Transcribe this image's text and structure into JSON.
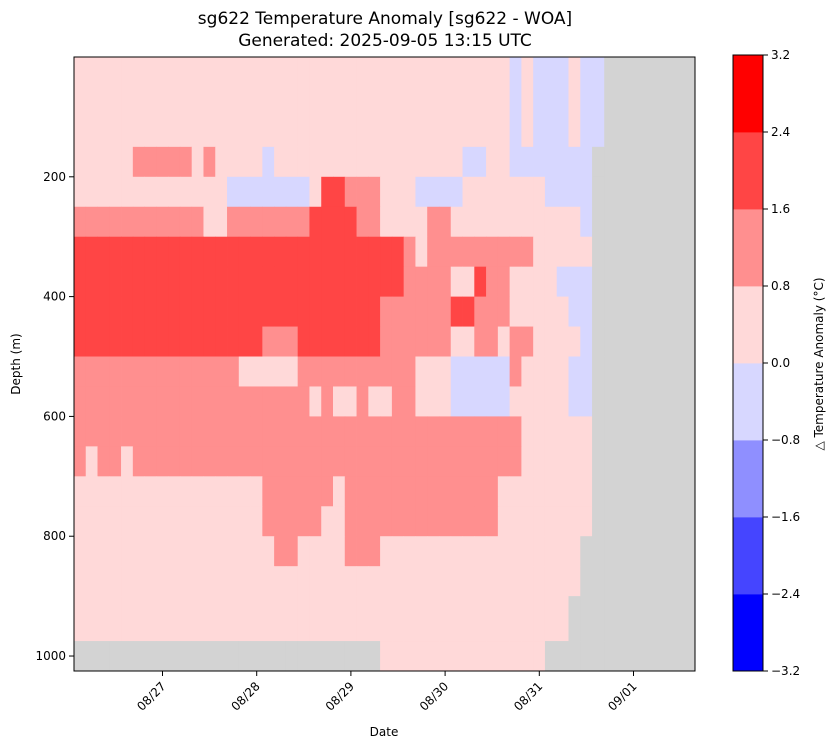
{
  "chart_data": {
    "type": "heatmap",
    "title": "sg622 Temperature Anomaly [sg622 - WOA]",
    "subtitle": "Generated: 2025-09-05 13:15 UTC",
    "xlabel": "Date",
    "ylabel": "Depth (m)",
    "x_ticks": [
      "08/27",
      "08/28",
      "08/29",
      "08/30",
      "08/31",
      "09/01"
    ],
    "y_ticks": [
      200,
      400,
      600,
      800,
      1000
    ],
    "y_range": [
      1025,
      0
    ],
    "y_inverted": true,
    "colorbar": {
      "label": "△ Temperature Anomaly (°C)",
      "ticks": [
        "3.2",
        "2.4",
        "1.6",
        "0.8",
        "0.0",
        "−0.8",
        "−1.6",
        "−2.4",
        "−3.2"
      ],
      "levels": [
        -3.2,
        -2.4,
        -1.6,
        -0.8,
        0.0,
        0.8,
        1.6,
        2.4,
        3.2
      ],
      "colors": [
        "#0000ff",
        "#4545ff",
        "#8f8fff",
        "#d7d7ff",
        "#ffd9d9",
        "#ff8f8f",
        "#ff4545",
        "#ff0000"
      ]
    },
    "nodata_color": "#d3d3d3",
    "legend_key": {
      "3": "anomaly -2.4 to -1.6 °C",
      "4": "anomaly -1.6 to -0.8 °C",
      "5": "anomaly -0.8 to 0.0 °C",
      "6": "anomaly 0.0 to 0.8 °C",
      "7": "anomaly 0.8 to 1.6 °C",
      "8": "anomaly 1.6 to 2.4 °C",
      "9": "anomaly 2.4 to 3.2 °C",
      "0": "no data"
    },
    "band_depths_m": [
      0,
      150,
      200,
      250,
      300,
      350,
      400,
      450,
      500,
      550,
      600,
      650,
      700,
      750,
      800,
      850,
      900,
      975,
      1025
    ],
    "segments_per_day": 8,
    "grid_start_day_offset": -0.94,
    "grid_rows": [
      "666666666666666666666666666666666666656555655",
      "666667777767666656666666666666666556655555550",
      "666666666666655555556887776665555666666655550",
      "777777777776677777778888776666776666666666650",
      "888888888888888888888888888876777777777666660",
      "888888888888888888888888888877776687766665550",
      "888888888888888888888888887777778877766666550",
      "888888888888888877788888887777776677677666650",
      "777777777777776666677777777776665555576666550",
      "777777777777777777776766766776665555566666550",
      "777777777777777777777777777777777777776666660",
      "767767777777777777777777777777777777776666660",
      "666666666666666677777767777777777777666666660",
      "666666666666666677777667777777777777666666660",
      "666666666666666667766667776666666666666666600",
      "666666666666666666666666666666666666666666600",
      "666666666666666666666666666666666666666666000",
      "000000000000000000000000006666666666666600000"
    ]
  }
}
